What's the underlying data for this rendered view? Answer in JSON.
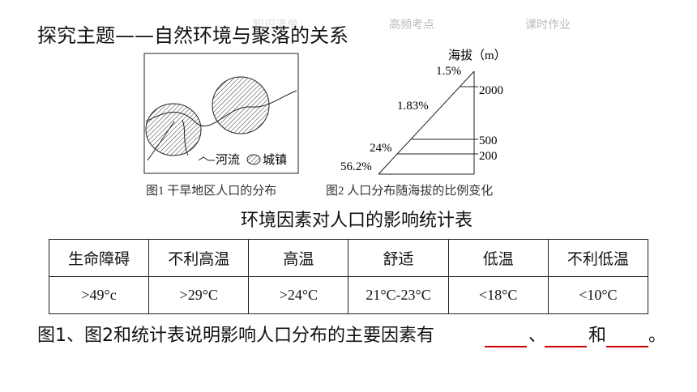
{
  "header": {
    "tabs": [
      "知识清单",
      "高频考点",
      "课时作业"
    ],
    "title": "探究主题——自然环境与聚落的关系"
  },
  "figure1": {
    "legend": [
      "河流",
      "城镇"
    ],
    "caption": "图1  干旱地区人口的分布"
  },
  "figure2": {
    "axis_label": "海拔（m）",
    "altitudes": [
      "2000",
      "500",
      "200"
    ],
    "shares": [
      "1.5%",
      "1.83%",
      "24%",
      "56.2%"
    ],
    "caption": "图2  人口分布随海拔的比例变化"
  },
  "table": {
    "title": "环境因素对人口的影响统计表",
    "header": [
      "生命障碍",
      "不利高温",
      "高温",
      "舒适",
      "低温",
      "不利低温"
    ],
    "rows": [
      [
        ">49°c",
        ">29°C",
        ">24°C",
        "21°C-23°C",
        "<18°C",
        "<10°C"
      ]
    ]
  },
  "question": {
    "text": "图1、图2和统计表说明影响人口分布的主要因素有",
    "sep1": "、",
    "sep2": "和",
    "end": "。"
  }
}
